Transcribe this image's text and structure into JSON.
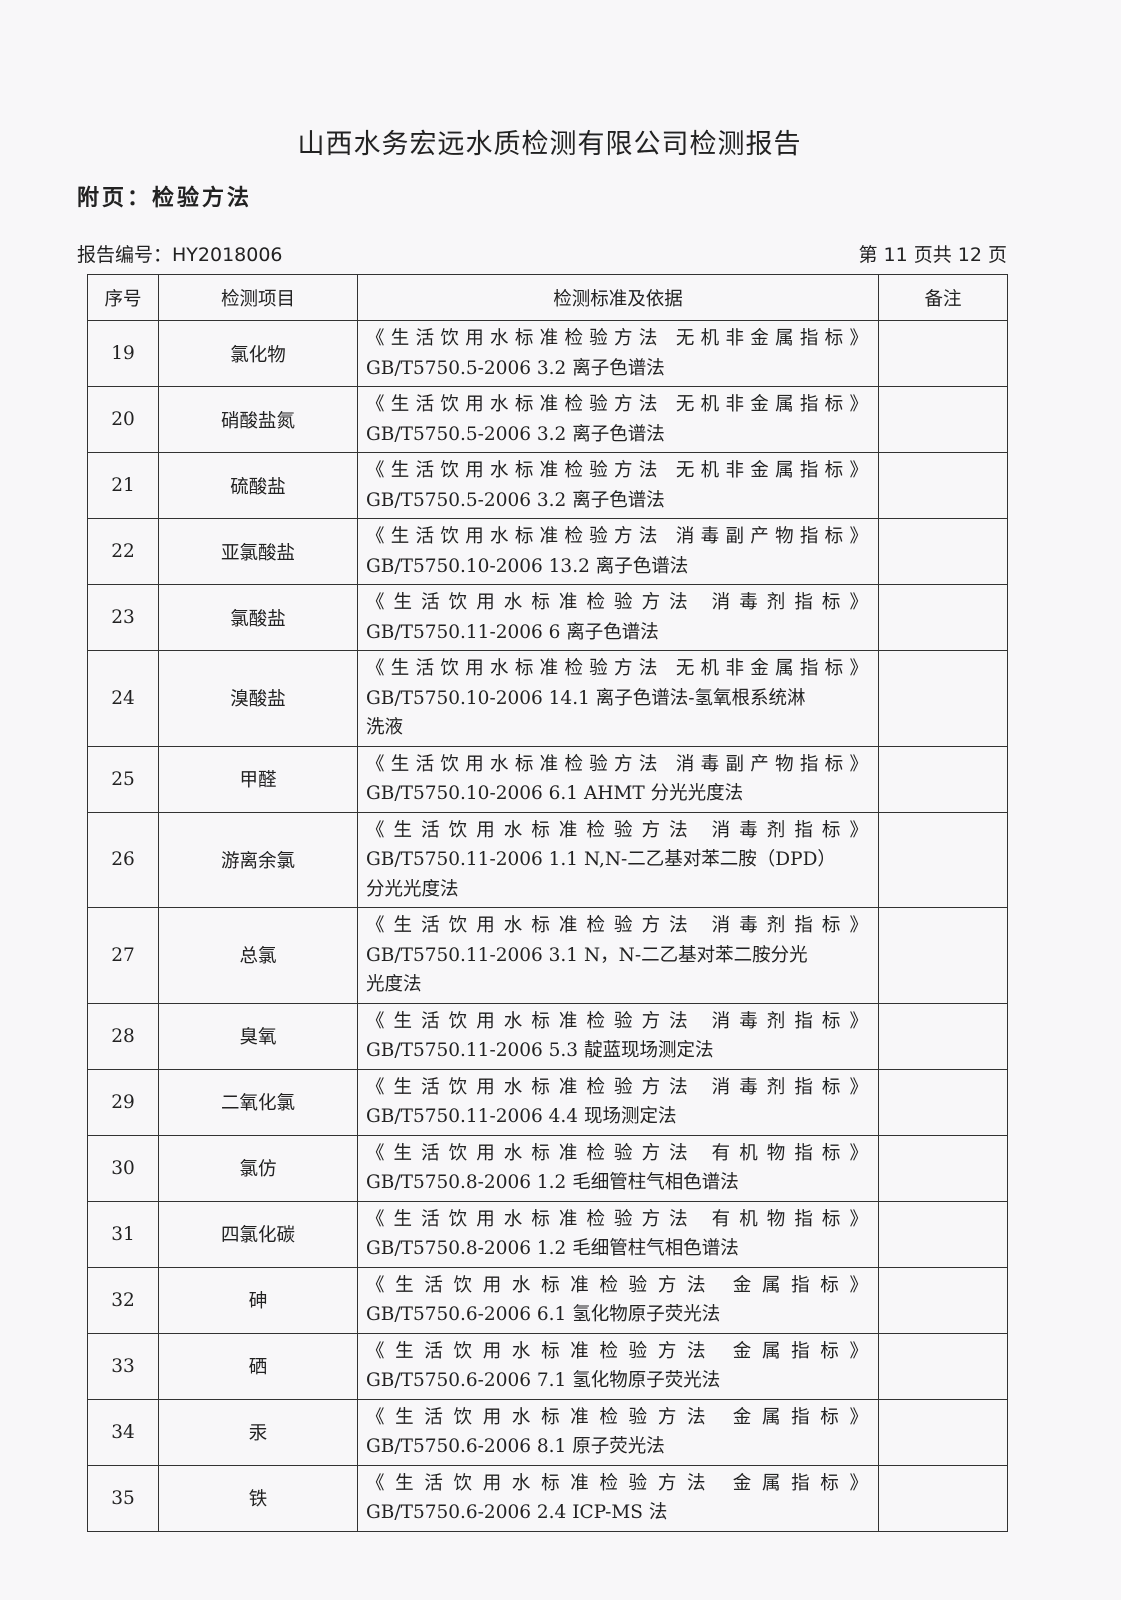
{
  "title": "山西水务宏远水质检测有限公司检测报告",
  "subtitle": "附页：检验方法",
  "report_no": "报告编号：HY2018006",
  "page_no": "第 11 页共 12 页",
  "table": {
    "headers": [
      "序号",
      "检测项目",
      "检测标准及依据",
      "备注"
    ],
    "rows": [
      {
        "no": "19",
        "item": "氯化物",
        "standard": [
          "《生活饮用水标准检验方法 无机非金属指标》",
          "GB/T5750.5-2006  3.2 离子色谱法"
        ],
        "note": ""
      },
      {
        "no": "20",
        "item": "硝酸盐氮",
        "standard": [
          "《生活饮用水标准检验方法 无机非金属指标》",
          "GB/T5750.5-2006  3.2 离子色谱法"
        ],
        "note": ""
      },
      {
        "no": "21",
        "item": "硫酸盐",
        "standard": [
          "《生活饮用水标准检验方法 无机非金属指标》",
          "GB/T5750.5-2006  3.2 离子色谱法"
        ],
        "note": ""
      },
      {
        "no": "22",
        "item": "亚氯酸盐",
        "standard": [
          "《生活饮用水标准检验方法 消毒副产物指标》",
          "GB/T5750.10-2006 13.2 离子色谱法"
        ],
        "note": ""
      },
      {
        "no": "23",
        "item": "氯酸盐",
        "standard": [
          "《生活饮用水标准检验方法 消毒剂指标》",
          "GB/T5750.11-2006 6 离子色谱法"
        ],
        "note": ""
      },
      {
        "no": "24",
        "item": "溴酸盐",
        "standard": [
          "《生活饮用水标准检验方法 无机非金属指标》",
          "GB/T5750.10-2006 14.1 离子色谱法-氢氧根系统淋",
          "洗液"
        ],
        "note": ""
      },
      {
        "no": "25",
        "item": "甲醛",
        "standard": [
          "《生活饮用水标准检验方法 消毒副产物指标》",
          "GB/T5750.10-2006 6.1 AHMT 分光光度法"
        ],
        "note": ""
      },
      {
        "no": "26",
        "item": "游离余氯",
        "standard": [
          "《生活饮用水标准检验方法 消毒剂指标》",
          "GB/T5750.11-2006 1.1 N,N-二乙基对苯二胺（DPD）",
          "分光光度法"
        ],
        "note": ""
      },
      {
        "no": "27",
        "item": "总氯",
        "standard": [
          "《生活饮用水标准检验方法 消毒剂指标》",
          "GB/T5750.11-2006 3.1 N，N-二乙基对苯二胺分光",
          "光度法"
        ],
        "note": ""
      },
      {
        "no": "28",
        "item": "臭氧",
        "standard": [
          "《生活饮用水标准检验方法 消毒剂指标》",
          "GB/T5750.11-2006 5.3 靛蓝现场测定法"
        ],
        "note": ""
      },
      {
        "no": "29",
        "item": "二氧化氯",
        "standard": [
          "《生活饮用水标准检验方法 消毒剂指标》",
          "GB/T5750.11-2006 4.4 现场测定法"
        ],
        "note": ""
      },
      {
        "no": "30",
        "item": "氯仿",
        "standard": [
          "《生活饮用水标准检验方法 有机物指标》",
          "GB/T5750.8-2006  1.2 毛细管柱气相色谱法"
        ],
        "note": ""
      },
      {
        "no": "31",
        "item": "四氯化碳",
        "standard": [
          "《生活饮用水标准检验方法 有机物指标》",
          "GB/T5750.8-2006  1.2 毛细管柱气相色谱法"
        ],
        "note": ""
      },
      {
        "no": "32",
        "item": "砷",
        "standard": [
          "《生活饮用水标准检验方法 金属指标》",
          "GB/T5750.6-2006  6.1 氢化物原子荧光法"
        ],
        "note": ""
      },
      {
        "no": "33",
        "item": "硒",
        "standard": [
          "《生活饮用水标准检验方法 金属指标》",
          "GB/T5750.6-2006  7.1 氢化物原子荧光法"
        ],
        "note": ""
      },
      {
        "no": "34",
        "item": "汞",
        "standard": [
          "《生活饮用水标准检验方法 金属指标》",
          "GB/T5750.6-2006  8.1 原子荧光法"
        ],
        "note": ""
      },
      {
        "no": "35",
        "item": "铁",
        "standard": [
          "《生活饮用水标准检验方法 金属指标》",
          "GB/T5750.6-2006  2.4 ICP-MS 法"
        ],
        "note": ""
      }
    ]
  }
}
